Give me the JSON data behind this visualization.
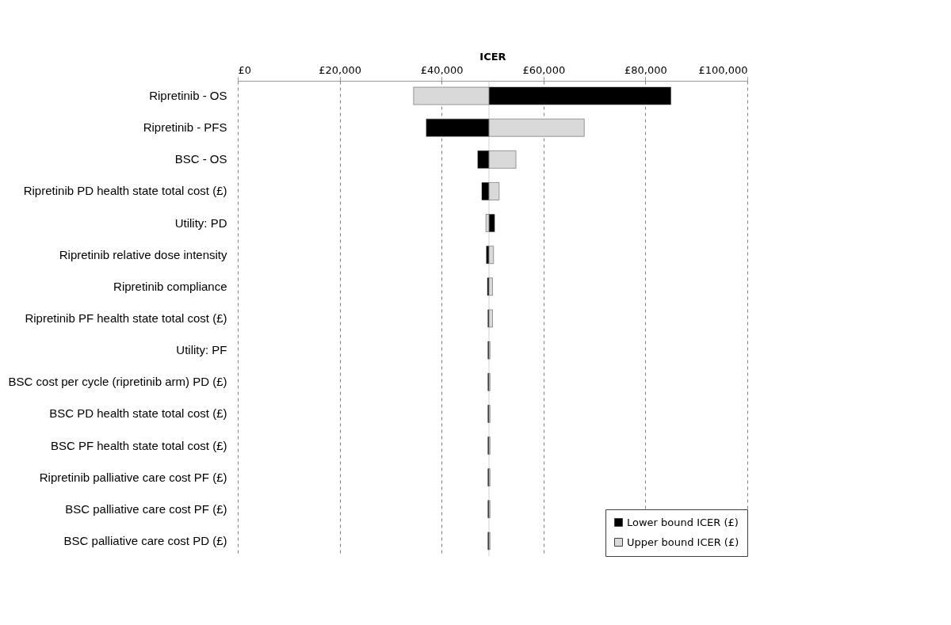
{
  "chart_data": {
    "type": "bar",
    "orientation": "horizontal",
    "xlabel": "ICER",
    "categories": [
      "Ripretinib - OS",
      "Ripretinib - PFS",
      "BSC - OS",
      "Ripretinib PD health state total cost (£)",
      "Utility: PD",
      "Ripretinib relative dose intensity",
      "Ripretinib compliance",
      "Ripretinib PF health state total cost (£)",
      "Utility: PF",
      "BSC cost per cycle (ripretinib arm) PD (£)",
      "BSC PD health state total cost (£)",
      "BSC PF health state total cost (£)",
      "Ripretinib palliative care cost PF (£)",
      "BSC palliative care cost PF (£)",
      "BSC palliative care cost PD (£)"
    ],
    "series": [
      {
        "name": "Lower bound ICER (£)",
        "color": "#000000",
        "base": [
          49300,
          49300,
          49300,
          49300,
          49300,
          49300,
          49300,
          49300,
          49300,
          49300,
          49300,
          49300,
          49300,
          49300,
          49300
        ],
        "values": [
          35700,
          -12300,
          -2200,
          -1400,
          1100,
          -500,
          -300,
          -200,
          -200,
          -200,
          -200,
          -200,
          -200,
          -200,
          -200
        ]
      },
      {
        "name": "Upper bound ICER (£)",
        "color": "#d9d9d9",
        "base": [
          49300,
          49300,
          49300,
          49300,
          49300,
          49300,
          49300,
          49300,
          49300,
          49300,
          49300,
          49300,
          49300,
          49300,
          49300
        ],
        "values": [
          -14800,
          18700,
          5300,
          2000,
          -600,
          900,
          700,
          700,
          200,
          200,
          200,
          200,
          200,
          200,
          200
        ]
      }
    ],
    "xlim": [
      0,
      100000
    ],
    "xticks": [
      {
        "value": 0,
        "label": "£0"
      },
      {
        "value": 20000,
        "label": "£20,000"
      },
      {
        "value": 40000,
        "label": "£40,000"
      },
      {
        "value": 60000,
        "label": "£60,000"
      },
      {
        "value": 80000,
        "label": "£80,000"
      },
      {
        "value": 100000,
        "label": "£100,000"
      }
    ],
    "ref_lines": [
      {
        "axis": "x",
        "value": 49300,
        "color": "#a6a6a6"
      }
    ],
    "grid": "x",
    "legend": "bottom right"
  }
}
